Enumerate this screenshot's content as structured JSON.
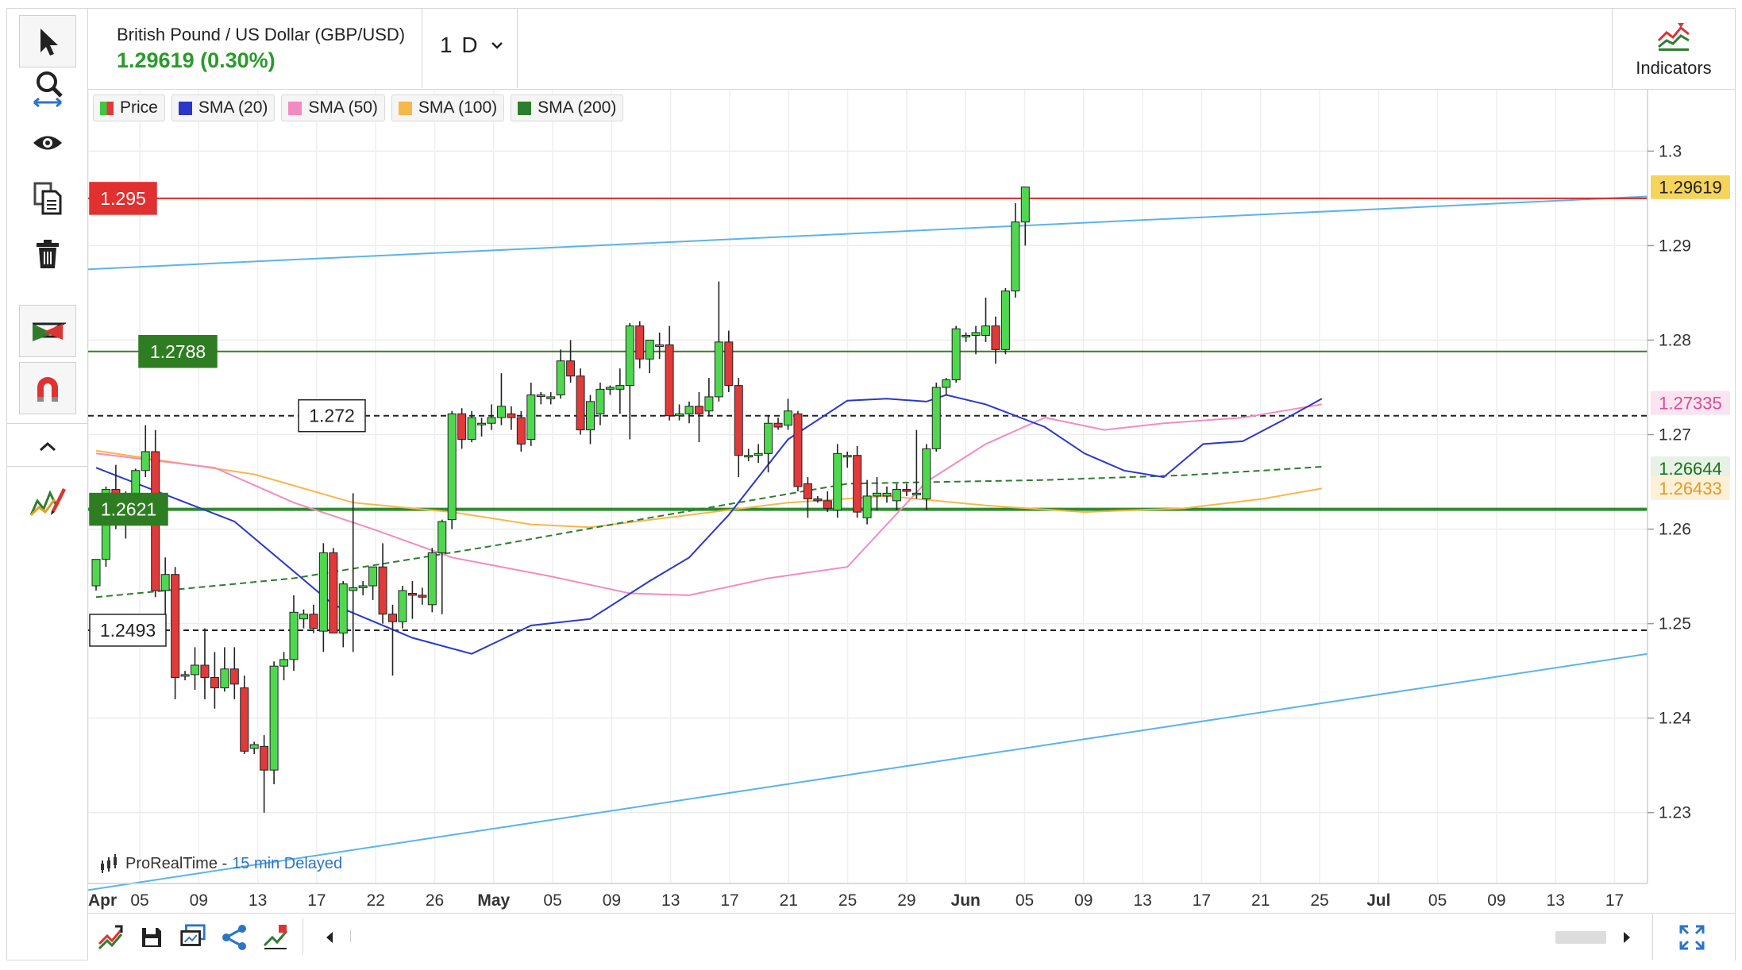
{
  "instrument": {
    "title": "British Pound / US Dollar (GBP/USD)",
    "price_change": "1.29619 (0.30%)"
  },
  "interval": {
    "label": "1 D"
  },
  "indicators_button": {
    "label": "Indicators"
  },
  "legend": [
    {
      "label": "Price",
      "color": "#3fc73f"
    },
    {
      "label": "SMA (20)",
      "color": "#2b37c9"
    },
    {
      "label": "SMA (50)",
      "color": "#f28cc0"
    },
    {
      "label": "SMA (100)",
      "color": "#f6b84a"
    },
    {
      "label": "SMA (200)",
      "color": "#2e7d2e"
    }
  ],
  "branding": {
    "name": "ProRealTime -",
    "delay": "15 min Delayed"
  },
  "toolbar": {
    "tools": [
      "pointer-icon",
      "zoom-icon",
      "eye-icon",
      "copy-icon",
      "trash-icon",
      "pattern-icon",
      "magnet-icon",
      "collapse-icon",
      "draw-icon"
    ]
  },
  "chart_data": {
    "type": "candlestick",
    "y_range": [
      1.2225,
      1.3065
    ],
    "x_ticks": [
      "Apr",
      "05",
      "09",
      "13",
      "17",
      "22",
      "26",
      "May",
      "05",
      "09",
      "13",
      "17",
      "21",
      "25",
      "29",
      "Jun",
      "05",
      "09",
      "13",
      "17",
      "21",
      "25",
      "Jul",
      "05",
      "09",
      "13",
      "17"
    ],
    "y_ticks": [
      "1.3",
      "1.29",
      "1.28",
      "1.27",
      "1.26",
      "1.25",
      "1.24",
      "1.23"
    ],
    "price_labels": [
      {
        "text": "1.29619",
        "value": 1.29619,
        "bg": "#f6d35a",
        "fg": "#222"
      },
      {
        "text": "1.27335",
        "value": 1.27335,
        "bg": "#fbe3ef",
        "fg": "#d24f95"
      },
      {
        "text": "1.26644",
        "value": 1.26644,
        "bg": "#e5f2e5",
        "fg": "#1f6e1f"
      },
      {
        "text": "1.26433",
        "value": 1.26433,
        "bg": "#fdf0d6",
        "fg": "#e09a2a"
      }
    ],
    "level_lines": [
      {
        "text": "1.295",
        "value": 1.295,
        "style": "red"
      },
      {
        "text": "1.2788",
        "value": 1.2788,
        "style": "green"
      },
      {
        "text": "1.272",
        "value": 1.272,
        "style": "dash"
      },
      {
        "text": "1.2621",
        "value": 1.2621,
        "style": "green-bold"
      },
      {
        "text": "1.2493",
        "value": 1.2493,
        "style": "dash"
      }
    ],
    "channel": {
      "upper": [
        1.2875,
        1.2952
      ],
      "lower": [
        1.2218,
        1.2468
      ]
    },
    "candles": [
      [
        1.254,
        1.2568,
        1.2535,
        1.2568
      ],
      [
        1.2568,
        1.2645,
        1.256,
        1.2642
      ],
      [
        1.2642,
        1.2668,
        1.26,
        1.2615
      ],
      [
        1.2615,
        1.264,
        1.259,
        1.2626
      ],
      [
        1.2626,
        1.2664,
        1.262,
        1.2662
      ],
      [
        1.2662,
        1.271,
        1.2655,
        1.2682
      ],
      [
        1.2682,
        1.2705,
        1.2528,
        1.2535
      ],
      [
        1.2535,
        1.257,
        1.251,
        1.2552
      ],
      [
        1.2552,
        1.256,
        1.242,
        1.2443
      ],
      [
        1.2445,
        1.245,
        1.244,
        1.2446
      ],
      [
        1.2446,
        1.2475,
        1.243,
        1.2456
      ],
      [
        1.2456,
        1.2495,
        1.242,
        1.2443
      ],
      [
        1.2443,
        1.247,
        1.241,
        1.2432
      ],
      [
        1.2432,
        1.2475,
        1.2428,
        1.2452
      ],
      [
        1.2452,
        1.2475,
        1.242,
        1.2436
      ],
      [
        1.2432,
        1.2445,
        1.2362,
        1.2365
      ],
      [
        1.2368,
        1.2375,
        1.2362,
        1.2372
      ],
      [
        1.237,
        1.2382,
        1.23,
        1.2345
      ],
      [
        1.2345,
        1.246,
        1.233,
        1.2455
      ],
      [
        1.2455,
        1.247,
        1.244,
        1.2462
      ],
      [
        1.2462,
        1.253,
        1.245,
        1.2512
      ],
      [
        1.2505,
        1.2515,
        1.2495,
        1.251
      ],
      [
        1.251,
        1.252,
        1.249,
        1.2495
      ],
      [
        1.2492,
        1.2585,
        1.247,
        1.2575
      ],
      [
        1.2575,
        1.258,
        1.249,
        1.249
      ],
      [
        1.249,
        1.2545,
        1.2475,
        1.2542
      ],
      [
        1.2535,
        1.2638,
        1.247,
        1.2538
      ],
      [
        1.2538,
        1.2545,
        1.253,
        1.254
      ],
      [
        1.254,
        1.256,
        1.2525,
        1.256
      ],
      [
        1.256,
        1.2585,
        1.25,
        1.251
      ],
      [
        1.251,
        1.252,
        1.2445,
        1.2502
      ],
      [
        1.2502,
        1.254,
        1.2495,
        1.2535
      ],
      [
        1.2532,
        1.2545,
        1.2505,
        1.253
      ],
      [
        1.253,
        1.2538,
        1.252,
        1.2528
      ],
      [
        1.252,
        1.258,
        1.2512,
        1.2575
      ],
      [
        1.2575,
        1.261,
        1.251,
        1.2608
      ],
      [
        1.261,
        1.2725,
        1.26,
        1.2722
      ],
      [
        1.2722,
        1.2728,
        1.2685,
        1.2695
      ],
      [
        1.2695,
        1.2725,
        1.2692,
        1.2718
      ],
      [
        1.2712,
        1.2718,
        1.2698,
        1.2712
      ],
      [
        1.2712,
        1.2732,
        1.2705,
        1.2718
      ],
      [
        1.2718,
        1.2765,
        1.271,
        1.273
      ],
      [
        1.2722,
        1.273,
        1.2705,
        1.2718
      ],
      [
        1.2718,
        1.2725,
        1.2682,
        1.269
      ],
      [
        1.2695,
        1.2755,
        1.2688,
        1.2742
      ],
      [
        1.2742,
        1.2745,
        1.2732,
        1.2742
      ],
      [
        1.2738,
        1.2745,
        1.2732,
        1.274
      ],
      [
        1.2742,
        1.279,
        1.2738,
        1.2778
      ],
      [
        1.2778,
        1.28,
        1.2755,
        1.2762
      ],
      [
        1.2762,
        1.277,
        1.27,
        1.2705
      ],
      [
        1.2705,
        1.2742,
        1.269,
        1.2735
      ],
      [
        1.2722,
        1.2755,
        1.271,
        1.2748
      ],
      [
        1.2748,
        1.2752,
        1.2742,
        1.275
      ],
      [
        1.2748,
        1.277,
        1.2722,
        1.2752
      ],
      [
        1.2752,
        1.2818,
        1.2695,
        1.2815
      ],
      [
        1.2815,
        1.282,
        1.277,
        1.278
      ],
      [
        1.278,
        1.28,
        1.2765,
        1.28
      ],
      [
        1.2795,
        1.2808,
        1.278,
        1.2795
      ],
      [
        1.2795,
        1.2815,
        1.2715,
        1.272
      ],
      [
        1.272,
        1.2732,
        1.2715,
        1.2722
      ],
      [
        1.2722,
        1.2735,
        1.2712,
        1.273
      ],
      [
        1.273,
        1.2745,
        1.2692,
        1.2722
      ],
      [
        1.2725,
        1.276,
        1.272,
        1.274
      ],
      [
        1.274,
        1.2862,
        1.2735,
        1.2798
      ],
      [
        1.2798,
        1.281,
        1.2745,
        1.2752
      ],
      [
        1.2752,
        1.276,
        1.2655,
        1.2678
      ],
      [
        1.2678,
        1.2685,
        1.2672,
        1.2678
      ],
      [
        1.2678,
        1.269,
        1.267,
        1.268
      ],
      [
        1.268,
        1.272,
        1.266,
        1.2712
      ],
      [
        1.2712,
        1.2718,
        1.2705,
        1.2708
      ],
      [
        1.271,
        1.2738,
        1.2705,
        1.2725
      ],
      [
        1.2722,
        1.2725,
        1.264,
        1.2645
      ],
      [
        1.2648,
        1.2655,
        1.2612,
        1.2632
      ],
      [
        1.2632,
        1.2635,
        1.2628,
        1.263
      ],
      [
        1.263,
        1.264,
        1.2618,
        1.2622
      ],
      [
        1.262,
        1.269,
        1.2612,
        1.268
      ],
      [
        1.2678,
        1.2682,
        1.2665,
        1.2678
      ],
      [
        1.2678,
        1.2688,
        1.2612,
        1.2618
      ],
      [
        1.2612,
        1.2652,
        1.2605,
        1.2635
      ],
      [
        1.2635,
        1.2655,
        1.262,
        1.2638
      ],
      [
        1.2635,
        1.2645,
        1.2628,
        1.2638
      ],
      [
        1.263,
        1.2648,
        1.262,
        1.2642
      ],
      [
        1.2642,
        1.2648,
        1.2635,
        1.264
      ],
      [
        1.2638,
        1.2705,
        1.2632,
        1.2638
      ],
      [
        1.2632,
        1.269,
        1.262,
        1.2685
      ],
      [
        1.2685,
        1.2755,
        1.2682,
        1.275
      ],
      [
        1.275,
        1.276,
        1.2742,
        1.2758
      ],
      [
        1.2758,
        1.2815,
        1.2755,
        1.2812
      ],
      [
        1.2805,
        1.2808,
        1.2798,
        1.2805
      ],
      [
        1.2805,
        1.2815,
        1.2785,
        1.2808
      ],
      [
        1.2805,
        1.2845,
        1.2798,
        1.2815
      ],
      [
        1.2815,
        1.2825,
        1.2775,
        1.279
      ],
      [
        1.279,
        1.2855,
        1.2785,
        1.2852
      ],
      [
        1.2852,
        1.2945,
        1.2845,
        1.2925
      ],
      [
        1.2925,
        1.2962,
        1.29,
        1.2962
      ]
    ],
    "sma20": [
      [
        0,
        1.2665
      ],
      [
        14,
        1.2608
      ],
      [
        24,
        1.252
      ],
      [
        32,
        1.2485
      ],
      [
        38,
        1.2468
      ],
      [
        44,
        1.2498
      ],
      [
        50,
        1.2505
      ],
      [
        56,
        1.2545
      ],
      [
        60,
        1.257
      ],
      [
        64,
        1.2615
      ],
      [
        70,
        1.2695
      ],
      [
        76,
        1.2736
      ],
      [
        80,
        1.2738
      ],
      [
        84,
        1.2735
      ],
      [
        86,
        1.2742
      ],
      [
        90,
        1.2732
      ],
      [
        96,
        1.2708
      ],
      [
        100,
        1.268
      ],
      [
        104,
        1.2662
      ],
      [
        108,
        1.2655
      ],
      [
        112,
        1.269
      ],
      [
        116,
        1.2693
      ],
      [
        120,
        1.2715
      ],
      [
        124,
        1.2738
      ]
    ],
    "sma50": [
      [
        0,
        1.268
      ],
      [
        12,
        1.2665
      ],
      [
        20,
        1.2628
      ],
      [
        28,
        1.26
      ],
      [
        36,
        1.257
      ],
      [
        46,
        1.255
      ],
      [
        54,
        1.2532
      ],
      [
        60,
        1.253
      ],
      [
        68,
        1.2548
      ],
      [
        76,
        1.256
      ],
      [
        84,
        1.265
      ],
      [
        90,
        1.269
      ],
      [
        96,
        1.2718
      ],
      [
        102,
        1.2705
      ],
      [
        108,
        1.2712
      ],
      [
        116,
        1.2718
      ],
      [
        120,
        1.2725
      ],
      [
        124,
        1.2732
      ]
    ],
    "sma100": [
      [
        0,
        1.2683
      ],
      [
        16,
        1.2658
      ],
      [
        26,
        1.2628
      ],
      [
        36,
        1.2618
      ],
      [
        44,
        1.2605
      ],
      [
        50,
        1.2602
      ],
      [
        60,
        1.2615
      ],
      [
        70,
        1.2628
      ],
      [
        80,
        1.2635
      ],
      [
        90,
        1.2625
      ],
      [
        100,
        1.2618
      ],
      [
        110,
        1.2622
      ],
      [
        118,
        1.2632
      ],
      [
        124,
        1.2643
      ]
    ],
    "sma200": [
      [
        0,
        1.2528
      ],
      [
        20,
        1.2548
      ],
      [
        40,
        1.2582
      ],
      [
        56,
        1.2612
      ],
      [
        66,
        1.263
      ],
      [
        76,
        1.2648
      ],
      [
        86,
        1.265
      ],
      [
        96,
        1.2652
      ],
      [
        110,
        1.2657
      ],
      [
        118,
        1.2662
      ],
      [
        124,
        1.2666
      ]
    ]
  }
}
